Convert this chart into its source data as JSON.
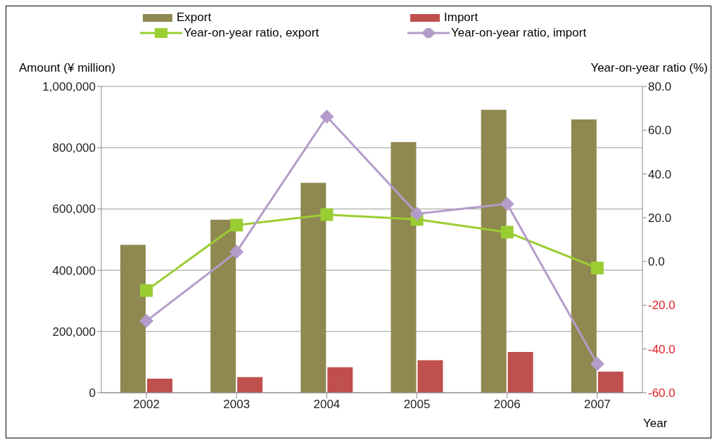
{
  "chart_data": {
    "type": "bar",
    "xlabel": "Year",
    "ylabel": "Amount (¥ million)",
    "y2label": "Year-on-year ratio (%)",
    "categories": [
      "2002",
      "2003",
      "2004",
      "2005",
      "2006",
      "2007"
    ],
    "series": [
      {
        "name": "Export",
        "color": "#8f8850",
        "values": [
          483000,
          565000,
          685000,
          818000,
          924000,
          892000
        ]
      },
      {
        "name": "Import",
        "color": "#c0504d",
        "values": [
          46000,
          51000,
          83000,
          106000,
          133000,
          69000
        ]
      },
      {
        "name": "Year-on-year ratio, export",
        "type": "line",
        "axis": "y2",
        "marker": "square",
        "color": "#9acd32",
        "values": [
          -13.3,
          16.6,
          21.4,
          19.2,
          13.4,
          -3.0
        ]
      },
      {
        "name": "Year-on-year ratio, import",
        "type": "line",
        "axis": "y2",
        "marker": "diamond",
        "color": "#b49cca",
        "values": [
          -27.2,
          4.4,
          66.2,
          21.8,
          26.3,
          -46.8
        ]
      }
    ],
    "ylim": [
      0,
      1000000
    ],
    "yticks": [
      {
        "value": 0,
        "label": "0"
      },
      {
        "value": 200000,
        "label": "200,000"
      },
      {
        "value": 400000,
        "label": "400,000"
      },
      {
        "value": 600000,
        "label": "600,000"
      },
      {
        "value": 800000,
        "label": "800,000"
      },
      {
        "value": 1000000,
        "label": "1,000,000"
      }
    ],
    "y2lim": [
      -60,
      80
    ],
    "y2ticks": [
      {
        "value": -60,
        "label": "-60.0"
      },
      {
        "value": -40,
        "label": "-40.0"
      },
      {
        "value": -20,
        "label": "-20.0"
      },
      {
        "value": 0,
        "label": "0.0"
      },
      {
        "value": 20,
        "label": "20.0"
      },
      {
        "value": 40,
        "label": "40.0"
      },
      {
        "value": 60,
        "label": "60.0"
      },
      {
        "value": 80,
        "label": "80.0"
      }
    ],
    "grid": "y",
    "legend": "top"
  }
}
